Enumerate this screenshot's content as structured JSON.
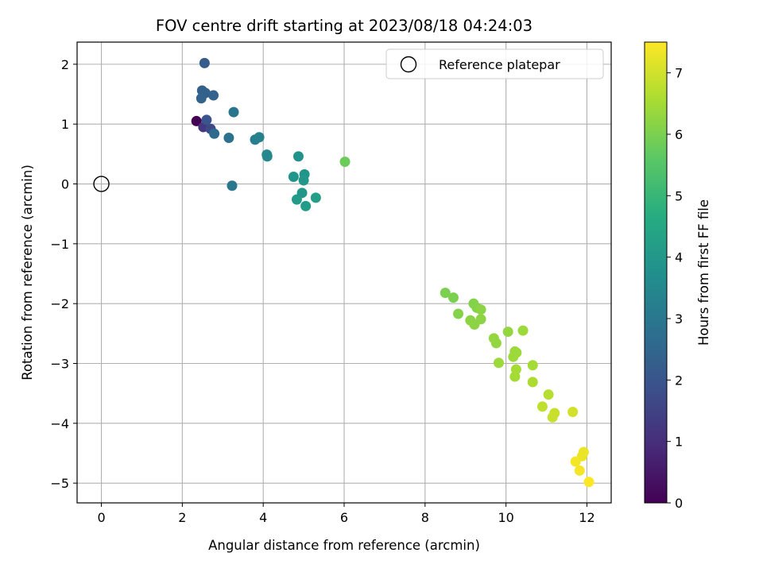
{
  "chart_data": {
    "type": "scatter",
    "title": "FOV centre drift starting at 2023/08/18 04:24:03",
    "xlabel": "Angular distance from reference (arcmin)",
    "ylabel": "Rotation from reference (arcmin)",
    "xlim": [
      -0.6,
      12.6
    ],
    "ylim": [
      -5.33,
      2.37
    ],
    "x_ticks": [
      0,
      2,
      4,
      6,
      8,
      10,
      12
    ],
    "x_tick_labels": [
      "0",
      "2",
      "4",
      "6",
      "8",
      "10",
      "12"
    ],
    "y_ticks": [
      2,
      1,
      0,
      -1,
      -2,
      -3,
      -4,
      -5
    ],
    "y_tick_labels": [
      "2",
      "1",
      "0",
      "−1",
      "−2",
      "−3",
      "−4",
      "−5"
    ],
    "grid": true,
    "legend": {
      "placement": "top-right",
      "entries": [
        {
          "label": "Reference platepar",
          "marker": "open-circle"
        }
      ]
    },
    "reference_point": {
      "x": 0,
      "y": 0
    },
    "colorbar": {
      "label": "Hours from first FF file",
      "range": [
        0,
        7.5
      ],
      "ticks": [
        0,
        1,
        2,
        3,
        4,
        5,
        6,
        7
      ],
      "tick_labels": [
        "0",
        "1",
        "2",
        "3",
        "4",
        "5",
        "6",
        "7"
      ],
      "colormap": "viridis"
    },
    "points": [
      {
        "x": 2.35,
        "y": 1.05,
        "hours": 0.0
      },
      {
        "x": 2.52,
        "y": 0.95,
        "hours": 1.2
      },
      {
        "x": 2.7,
        "y": 0.92,
        "hours": 1.7
      },
      {
        "x": 2.6,
        "y": 1.07,
        "hours": 2.0
      },
      {
        "x": 2.55,
        "y": 2.02,
        "hours": 2.2
      },
      {
        "x": 2.49,
        "y": 1.56,
        "hours": 2.3
      },
      {
        "x": 2.57,
        "y": 1.52,
        "hours": 2.3
      },
      {
        "x": 2.47,
        "y": 1.43,
        "hours": 2.4
      },
      {
        "x": 2.77,
        "y": 1.48,
        "hours": 2.4
      },
      {
        "x": 2.79,
        "y": 0.84,
        "hours": 2.6
      },
      {
        "x": 3.15,
        "y": 0.77,
        "hours": 2.8
      },
      {
        "x": 3.27,
        "y": 1.2,
        "hours": 2.9
      },
      {
        "x": 3.23,
        "y": -0.03,
        "hours": 3.0
      },
      {
        "x": 3.8,
        "y": 0.74,
        "hours": 3.2
      },
      {
        "x": 3.9,
        "y": 0.78,
        "hours": 3.3
      },
      {
        "x": 4.09,
        "y": 0.49,
        "hours": 3.5
      },
      {
        "x": 4.1,
        "y": 0.46,
        "hours": 3.5
      },
      {
        "x": 4.87,
        "y": 0.46,
        "hours": 3.8
      },
      {
        "x": 4.75,
        "y": 0.12,
        "hours": 3.9
      },
      {
        "x": 5.02,
        "y": 0.16,
        "hours": 3.9
      },
      {
        "x": 5.0,
        "y": 0.06,
        "hours": 4.0
      },
      {
        "x": 4.96,
        "y": -0.15,
        "hours": 4.0
      },
      {
        "x": 4.83,
        "y": -0.26,
        "hours": 4.1
      },
      {
        "x": 5.05,
        "y": -0.37,
        "hours": 4.1
      },
      {
        "x": 5.3,
        "y": -0.23,
        "hours": 4.2
      },
      {
        "x": 6.02,
        "y": 0.37,
        "hours": 5.8
      },
      {
        "x": 8.5,
        "y": -1.82,
        "hours": 6.0
      },
      {
        "x": 8.7,
        "y": -1.9,
        "hours": 6.0
      },
      {
        "x": 8.82,
        "y": -2.17,
        "hours": 6.1
      },
      {
        "x": 9.2,
        "y": -2.0,
        "hours": 6.1
      },
      {
        "x": 9.28,
        "y": -2.07,
        "hours": 6.1
      },
      {
        "x": 9.38,
        "y": -2.1,
        "hours": 6.2
      },
      {
        "x": 9.12,
        "y": -2.28,
        "hours": 6.2
      },
      {
        "x": 9.22,
        "y": -2.35,
        "hours": 6.2
      },
      {
        "x": 9.38,
        "y": -2.26,
        "hours": 6.2
      },
      {
        "x": 9.7,
        "y": -2.58,
        "hours": 6.3
      },
      {
        "x": 9.76,
        "y": -2.66,
        "hours": 6.3
      },
      {
        "x": 10.05,
        "y": -2.47,
        "hours": 6.3
      },
      {
        "x": 10.42,
        "y": -2.45,
        "hours": 6.4
      },
      {
        "x": 10.22,
        "y": -2.8,
        "hours": 6.4
      },
      {
        "x": 10.18,
        "y": -2.89,
        "hours": 6.4
      },
      {
        "x": 10.26,
        "y": -2.82,
        "hours": 6.4
      },
      {
        "x": 9.82,
        "y": -2.99,
        "hours": 6.4
      },
      {
        "x": 10.66,
        "y": -3.03,
        "hours": 6.5
      },
      {
        "x": 10.25,
        "y": -3.1,
        "hours": 6.5
      },
      {
        "x": 10.22,
        "y": -3.22,
        "hours": 6.5
      },
      {
        "x": 10.66,
        "y": -3.31,
        "hours": 6.6
      },
      {
        "x": 11.05,
        "y": -3.52,
        "hours": 6.7
      },
      {
        "x": 10.9,
        "y": -3.72,
        "hours": 6.8
      },
      {
        "x": 11.2,
        "y": -3.83,
        "hours": 6.9
      },
      {
        "x": 11.15,
        "y": -3.9,
        "hours": 6.9
      },
      {
        "x": 11.65,
        "y": -3.81,
        "hours": 7.0
      },
      {
        "x": 11.92,
        "y": -4.48,
        "hours": 7.3
      },
      {
        "x": 11.88,
        "y": -4.55,
        "hours": 7.3
      },
      {
        "x": 11.72,
        "y": -4.64,
        "hours": 7.4
      },
      {
        "x": 11.82,
        "y": -4.79,
        "hours": 7.4
      },
      {
        "x": 12.05,
        "y": -4.98,
        "hours": 7.5
      }
    ]
  }
}
